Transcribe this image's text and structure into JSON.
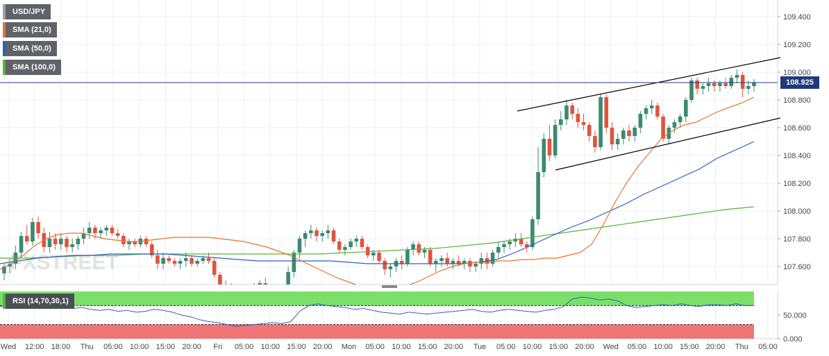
{
  "legend": {
    "symbol": "USD/JPY",
    "items": [
      {
        "label": "SMA (21,0)",
        "color": "#e8732b"
      },
      {
        "label": "SMA (50,0)",
        "color": "#2a5fbf"
      },
      {
        "label": "SMA (100,0)",
        "color": "#56b33a"
      }
    ],
    "rsi_label": "RSI (14,70,30,1)"
  },
  "watermark": "FXSTREET",
  "current_price": "108.925",
  "chart_data": {
    "type": "candlestick",
    "title": "",
    "price_axis": {
      "ticks": [
        "109.400",
        "109.200",
        "109.000",
        "108.800",
        "108.600",
        "108.400",
        "108.200",
        "108.000",
        "107.800",
        "107.600"
      ],
      "range": [
        107.47,
        109.52
      ]
    },
    "rsi_axis": {
      "ticks": [
        "50.000",
        "0.000"
      ],
      "range": [
        0,
        100
      ],
      "overbought": 70,
      "oversold": 30
    },
    "time_axis": [
      "Wed",
      "12:00",
      "18:00",
      "Thu",
      "05:00",
      "10:00",
      "15:00",
      "20:00",
      "Fri",
      "05:00",
      "10:00",
      "15:00",
      "20:00",
      "Mon",
      "05:00",
      "10:00",
      "15:00",
      "20:00",
      "Tue",
      "05:00",
      "10:00",
      "15:00",
      "20:00",
      "Wed",
      "05:00",
      "10:00",
      "15:00",
      "20:00",
      "Thu",
      "05:00"
    ],
    "candles": [
      [
        107.55,
        107.62,
        107.5,
        107.6
      ],
      [
        107.6,
        107.66,
        107.55,
        107.62
      ],
      [
        107.62,
        107.75,
        107.58,
        107.7
      ],
      [
        107.7,
        107.85,
        107.66,
        107.82
      ],
      [
        107.82,
        107.9,
        107.76,
        107.78
      ],
      [
        107.78,
        107.95,
        107.75,
        107.92
      ],
      [
        107.92,
        107.96,
        107.8,
        107.84
      ],
      [
        107.84,
        107.88,
        107.7,
        107.74
      ],
      [
        107.74,
        107.85,
        107.7,
        107.8
      ],
      [
        107.8,
        107.84,
        107.72,
        107.76
      ],
      [
        107.76,
        107.84,
        107.72,
        107.8
      ],
      [
        107.8,
        107.82,
        107.7,
        107.74
      ],
      [
        107.74,
        107.8,
        107.7,
        107.76
      ],
      [
        107.76,
        107.82,
        107.72,
        107.8
      ],
      [
        107.8,
        107.88,
        107.76,
        107.84
      ],
      [
        107.84,
        107.92,
        107.8,
        107.88
      ],
      [
        107.88,
        107.9,
        107.8,
        107.84
      ],
      [
        107.84,
        107.88,
        107.8,
        107.86
      ],
      [
        107.86,
        107.9,
        107.82,
        107.88
      ],
      [
        107.88,
        107.9,
        107.82,
        107.84
      ],
      [
        107.84,
        107.87,
        107.8,
        107.82
      ],
      [
        107.82,
        107.84,
        107.74,
        107.76
      ],
      [
        107.76,
        107.8,
        107.72,
        107.78
      ],
      [
        107.78,
        107.8,
        107.74,
        107.76
      ],
      [
        107.76,
        107.82,
        107.74,
        107.8
      ],
      [
        107.8,
        107.82,
        107.74,
        107.76
      ],
      [
        107.76,
        107.78,
        107.66,
        107.68
      ],
      [
        107.68,
        107.72,
        107.58,
        107.62
      ],
      [
        107.62,
        107.7,
        107.58,
        107.66
      ],
      [
        107.66,
        107.68,
        107.62,
        107.64
      ],
      [
        107.64,
        107.66,
        107.6,
        107.62
      ],
      [
        107.62,
        107.66,
        107.58,
        107.64
      ],
      [
        107.64,
        107.7,
        107.6,
        107.66
      ],
      [
        107.66,
        107.68,
        107.6,
        107.62
      ],
      [
        107.62,
        107.66,
        107.6,
        107.64
      ],
      [
        107.64,
        107.68,
        107.62,
        107.66
      ],
      [
        107.66,
        107.7,
        107.62,
        107.64
      ],
      [
        107.64,
        107.66,
        107.52,
        107.54
      ],
      [
        107.54,
        107.56,
        107.44,
        107.46
      ],
      [
        107.46,
        107.5,
        107.4,
        107.44
      ],
      [
        107.44,
        107.48,
        107.38,
        107.42
      ],
      [
        107.42,
        107.46,
        107.36,
        107.4
      ],
      [
        107.4,
        107.44,
        107.36,
        107.42
      ],
      [
        107.42,
        107.46,
        107.38,
        107.44
      ],
      [
        107.44,
        107.48,
        107.4,
        107.46
      ],
      [
        107.46,
        107.5,
        107.42,
        107.48
      ],
      [
        107.48,
        107.52,
        107.42,
        107.44
      ],
      [
        107.44,
        107.46,
        107.38,
        107.4
      ],
      [
        107.4,
        107.44,
        107.36,
        107.42
      ],
      [
        107.42,
        107.46,
        107.38,
        107.44
      ],
      [
        107.44,
        107.6,
        107.42,
        107.56
      ],
      [
        107.56,
        107.72,
        107.52,
        107.7
      ],
      [
        107.7,
        107.82,
        107.66,
        107.8
      ],
      [
        107.8,
        107.86,
        107.74,
        107.84
      ],
      [
        107.84,
        107.9,
        107.8,
        107.86
      ],
      [
        107.86,
        107.88,
        107.78,
        107.82
      ],
      [
        107.82,
        107.86,
        107.78,
        107.84
      ],
      [
        107.84,
        107.9,
        107.8,
        107.86
      ],
      [
        107.86,
        107.88,
        107.76,
        107.78
      ],
      [
        107.78,
        107.8,
        107.7,
        107.72
      ],
      [
        107.72,
        107.76,
        107.68,
        107.74
      ],
      [
        107.74,
        107.8,
        107.72,
        107.78
      ],
      [
        107.78,
        107.82,
        107.74,
        107.8
      ],
      [
        107.8,
        107.82,
        107.72,
        107.74
      ],
      [
        107.74,
        107.76,
        107.66,
        107.68
      ],
      [
        107.68,
        107.72,
        107.64,
        107.7
      ],
      [
        107.7,
        107.72,
        107.62,
        107.64
      ],
      [
        107.64,
        107.66,
        107.54,
        107.58
      ],
      [
        107.58,
        107.62,
        107.52,
        107.6
      ],
      [
        107.6,
        107.66,
        107.56,
        107.64
      ],
      [
        107.64,
        107.68,
        107.58,
        107.62
      ],
      [
        107.62,
        107.74,
        107.6,
        107.72
      ],
      [
        107.72,
        107.78,
        107.68,
        107.76
      ],
      [
        107.76,
        107.78,
        107.68,
        107.7
      ],
      [
        107.7,
        107.74,
        107.66,
        107.72
      ],
      [
        107.72,
        107.74,
        107.6,
        107.62
      ],
      [
        107.62,
        107.66,
        107.56,
        107.64
      ],
      [
        107.64,
        107.68,
        107.6,
        107.66
      ],
      [
        107.66,
        107.7,
        107.6,
        107.62
      ],
      [
        107.62,
        107.66,
        107.58,
        107.64
      ],
      [
        107.64,
        107.68,
        107.6,
        107.62
      ],
      [
        107.62,
        107.66,
        107.58,
        107.64
      ],
      [
        107.64,
        107.66,
        107.56,
        107.6
      ],
      [
        107.6,
        107.64,
        107.56,
        107.62
      ],
      [
        107.62,
        107.7,
        107.58,
        107.66
      ],
      [
        107.66,
        107.7,
        107.58,
        107.62
      ],
      [
        107.62,
        107.72,
        107.6,
        107.7
      ],
      [
        107.7,
        107.78,
        107.66,
        107.74
      ],
      [
        107.74,
        107.78,
        107.7,
        107.76
      ],
      [
        107.76,
        107.8,
        107.72,
        107.78
      ],
      [
        107.78,
        107.84,
        107.74,
        107.8
      ],
      [
        107.8,
        107.84,
        107.74,
        107.76
      ],
      [
        107.76,
        107.78,
        107.7,
        107.74
      ],
      [
        107.74,
        107.96,
        107.72,
        107.94
      ],
      [
        107.94,
        108.46,
        107.9,
        108.28
      ],
      [
        108.28,
        108.56,
        108.24,
        108.52
      ],
      [
        108.52,
        108.62,
        108.36,
        108.4
      ],
      [
        108.4,
        108.66,
        108.38,
        108.62
      ],
      [
        108.62,
        108.72,
        108.58,
        108.66
      ],
      [
        108.66,
        108.8,
        108.62,
        108.76
      ],
      [
        108.76,
        108.78,
        108.66,
        108.7
      ],
      [
        108.7,
        108.74,
        108.6,
        108.64
      ],
      [
        108.64,
        108.7,
        108.58,
        108.62
      ],
      [
        108.62,
        108.64,
        108.5,
        108.54
      ],
      [
        108.54,
        108.58,
        108.42,
        108.46
      ],
      [
        108.46,
        108.84,
        108.44,
        108.82
      ],
      [
        108.82,
        108.84,
        108.56,
        108.6
      ],
      [
        108.6,
        108.64,
        108.44,
        108.48
      ],
      [
        108.48,
        108.56,
        108.44,
        108.52
      ],
      [
        108.52,
        108.6,
        108.48,
        108.58
      ],
      [
        108.58,
        108.62,
        108.5,
        108.54
      ],
      [
        108.54,
        108.62,
        108.5,
        108.6
      ],
      [
        108.6,
        108.72,
        108.56,
        108.7
      ],
      [
        108.7,
        108.76,
        108.66,
        108.74
      ],
      [
        108.74,
        108.8,
        108.7,
        108.76
      ],
      [
        108.76,
        108.78,
        108.66,
        108.68
      ],
      [
        108.68,
        108.7,
        108.5,
        108.52
      ],
      [
        108.52,
        108.62,
        108.48,
        108.6
      ],
      [
        108.6,
        108.66,
        108.56,
        108.64
      ],
      [
        108.64,
        108.7,
        108.6,
        108.68
      ],
      [
        108.68,
        108.82,
        108.64,
        108.8
      ],
      [
        108.8,
        108.96,
        108.78,
        108.94
      ],
      [
        108.94,
        108.96,
        108.84,
        108.88
      ],
      [
        108.88,
        108.92,
        108.84,
        108.9
      ],
      [
        108.9,
        108.96,
        108.86,
        108.92
      ],
      [
        108.92,
        108.94,
        108.86,
        108.9
      ],
      [
        108.9,
        108.94,
        108.86,
        108.92
      ],
      [
        108.92,
        108.96,
        108.88,
        108.9
      ],
      [
        108.9,
        108.98,
        108.88,
        108.96
      ],
      [
        108.96,
        109.02,
        108.92,
        108.98
      ],
      [
        108.98,
        109.0,
        108.82,
        108.88
      ],
      [
        108.88,
        108.94,
        108.84,
        108.9
      ],
      [
        108.9,
        108.95,
        108.86,
        108.925
      ]
    ],
    "sma21": [
      107.58,
      107.62,
      107.68,
      107.75,
      107.8,
      107.83,
      107.84,
      107.84,
      107.82,
      107.8,
      107.79,
      107.78,
      107.78,
      107.79,
      107.8,
      107.81,
      107.81,
      107.81,
      107.81,
      107.8,
      107.79,
      107.78,
      107.76,
      107.74,
      107.71,
      107.68,
      107.64,
      107.6,
      107.56,
      107.52,
      107.49,
      107.46,
      107.44,
      107.43,
      107.44,
      107.46,
      107.49,
      107.53,
      107.57,
      107.6,
      107.62,
      107.63,
      107.63,
      107.64,
      107.64,
      107.65,
      107.65,
      107.66,
      107.66,
      107.68,
      107.7,
      107.76,
      107.9,
      108.06,
      108.2,
      108.32,
      108.42,
      108.52,
      108.58,
      108.62,
      108.64,
      108.68,
      108.72,
      108.75,
      108.78,
      108.82
    ],
    "sma50": [
      107.62,
      107.64,
      107.66,
      107.67,
      107.68,
      107.68,
      107.69,
      107.69,
      107.69,
      107.69,
      107.68,
      107.67,
      107.66,
      107.65,
      107.64,
      107.64,
      107.64,
      107.64,
      107.64,
      107.63,
      107.62,
      107.62,
      107.62,
      107.62,
      107.62,
      107.62,
      107.63,
      107.65,
      107.7,
      107.76,
      107.82,
      107.88,
      107.93,
      107.99,
      108.05,
      108.12,
      108.18,
      108.24,
      108.3,
      108.38,
      108.44,
      108.5
    ],
    "sma100": [
      107.66,
      107.66,
      107.67,
      107.68,
      107.68,
      107.69,
      107.69,
      107.69,
      107.69,
      107.69,
      107.69,
      107.69,
      107.7,
      107.71,
      107.72,
      107.73,
      107.75,
      107.77,
      107.8,
      107.83,
      107.86,
      107.89,
      107.92,
      107.95,
      107.98,
      108.01,
      108.03
    ],
    "rsi": [
      68,
      70,
      74,
      72,
      76,
      70,
      66,
      68,
      64,
      66,
      62,
      60,
      62,
      58,
      60,
      56,
      58,
      62,
      60,
      56,
      50,
      46,
      40,
      36,
      34,
      30,
      26,
      28,
      30,
      32,
      34,
      32,
      36,
      58,
      70,
      74,
      70,
      68,
      66,
      62,
      64,
      60,
      56,
      54,
      52,
      56,
      54,
      52,
      54,
      56,
      58,
      60,
      62,
      58,
      56,
      60,
      62,
      60,
      58,
      56,
      60,
      62,
      68,
      84,
      88,
      86,
      82,
      84,
      80,
      70,
      66,
      68,
      70,
      72,
      70,
      74,
      70,
      68,
      72,
      72,
      70,
      74,
      70,
      70
    ]
  }
}
